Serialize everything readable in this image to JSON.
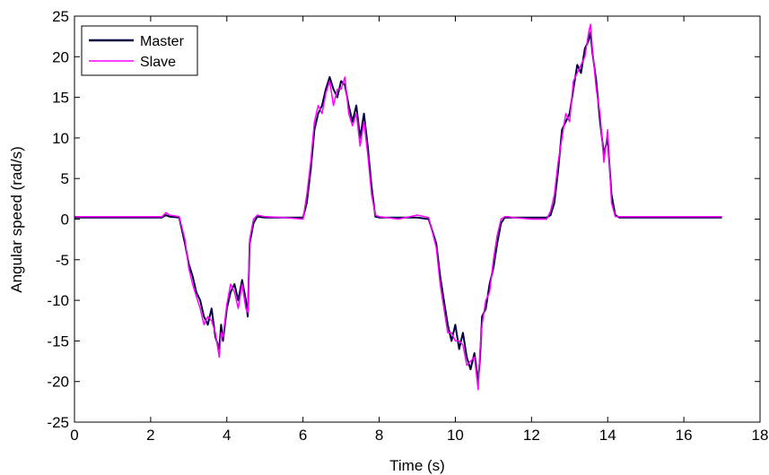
{
  "chart_data": {
    "type": "line",
    "xlabel": "Time (s)",
    "ylabel": "Angular speed (rad/s)",
    "xlim": [
      0,
      18
    ],
    "ylim": [
      -25,
      25
    ],
    "xticks": [
      0,
      2,
      4,
      6,
      8,
      10,
      12,
      14,
      16,
      18
    ],
    "yticks": [
      -25,
      -20,
      -15,
      -10,
      -5,
      0,
      5,
      10,
      15,
      20,
      25
    ],
    "grid": false,
    "legend_position": "top-left",
    "series": [
      {
        "name": "Master",
        "color": "#000040",
        "x": [
          0,
          2.3,
          2.4,
          2.5,
          2.75,
          2.9,
          3.0,
          3.1,
          3.2,
          3.3,
          3.4,
          3.5,
          3.6,
          3.7,
          3.8,
          3.85,
          3.9,
          4.0,
          4.1,
          4.2,
          4.3,
          4.4,
          4.5,
          4.55,
          4.6,
          4.7,
          4.8,
          5.0,
          5.5,
          6.0,
          6.1,
          6.2,
          6.3,
          6.4,
          6.5,
          6.6,
          6.7,
          6.8,
          6.9,
          7.0,
          7.1,
          7.2,
          7.3,
          7.4,
          7.5,
          7.6,
          7.7,
          7.8,
          7.9,
          8.0,
          8.5,
          9.0,
          9.3,
          9.5,
          9.6,
          9.7,
          9.8,
          9.9,
          10.0,
          10.1,
          10.2,
          10.3,
          10.4,
          10.5,
          10.6,
          10.65,
          10.7,
          10.8,
          10.9,
          11.0,
          11.1,
          11.2,
          11.3,
          11.4,
          11.5,
          12.0,
          12.4,
          12.5,
          12.6,
          12.7,
          12.8,
          12.9,
          13.0,
          13.1,
          13.2,
          13.3,
          13.4,
          13.5,
          13.55,
          13.6,
          13.7,
          13.8,
          13.9,
          14.0,
          14.1,
          14.2,
          14.3,
          14.5,
          15.0,
          16.0,
          17.0
        ],
        "values": [
          0.2,
          0.2,
          0.5,
          0.3,
          0.2,
          -3.0,
          -5.5,
          -7.0,
          -9.0,
          -10.0,
          -12.0,
          -13.0,
          -11.0,
          -14.5,
          -16.0,
          -13.0,
          -15.0,
          -11.0,
          -9.0,
          -8.0,
          -10.0,
          -7.5,
          -10.0,
          -12.0,
          -3.0,
          -0.5,
          0.3,
          0.2,
          0.2,
          0.2,
          2.0,
          6.0,
          11.0,
          13.0,
          14.0,
          16.0,
          17.5,
          16.0,
          15.0,
          17.0,
          16.5,
          14.0,
          12.0,
          14.0,
          10.0,
          13.0,
          9.0,
          4.0,
          0.3,
          0.2,
          0.2,
          0.2,
          0.0,
          -3.0,
          -7.0,
          -10.0,
          -13.0,
          -15.0,
          -13.0,
          -16.0,
          -14.0,
          -17.0,
          -18.5,
          -16.5,
          -20.0,
          -17.0,
          -12.0,
          -11.0,
          -8.0,
          -6.0,
          -3.0,
          -0.5,
          0.2,
          0.2,
          0.2,
          0.2,
          0.2,
          0.5,
          2.0,
          6.0,
          11.0,
          12.0,
          13.0,
          16.0,
          19.0,
          18.0,
          21.0,
          22.0,
          23.0,
          20.5,
          17.0,
          12.0,
          8.0,
          10.0,
          3.0,
          0.5,
          0.2,
          0.2,
          0.2,
          0.2,
          0.2
        ]
      },
      {
        "name": "Slave",
        "color": "#ff00ff",
        "x": [
          0,
          2.3,
          2.4,
          2.5,
          2.75,
          2.9,
          3.0,
          3.1,
          3.2,
          3.3,
          3.4,
          3.5,
          3.6,
          3.7,
          3.8,
          3.85,
          3.9,
          4.0,
          4.1,
          4.2,
          4.3,
          4.4,
          4.5,
          4.55,
          4.6,
          4.7,
          4.8,
          5.0,
          5.5,
          6.0,
          6.1,
          6.2,
          6.3,
          6.4,
          6.5,
          6.6,
          6.7,
          6.8,
          6.9,
          7.0,
          7.1,
          7.2,
          7.3,
          7.4,
          7.5,
          7.6,
          7.7,
          7.8,
          7.9,
          8.0,
          8.5,
          9.0,
          9.3,
          9.5,
          9.6,
          9.7,
          9.8,
          9.9,
          10.0,
          10.1,
          10.2,
          10.3,
          10.4,
          10.5,
          10.6,
          10.65,
          10.7,
          10.8,
          10.9,
          11.0,
          11.1,
          11.2,
          11.3,
          11.4,
          11.5,
          12.0,
          12.4,
          12.5,
          12.6,
          12.7,
          12.8,
          12.9,
          13.0,
          13.1,
          13.2,
          13.3,
          13.4,
          13.5,
          13.55,
          13.6,
          13.7,
          13.8,
          13.9,
          14.0,
          14.1,
          14.2,
          14.3,
          14.5,
          15.0,
          16.0,
          17.0
        ],
        "values": [
          0.3,
          0.3,
          0.8,
          0.5,
          0.3,
          -2.5,
          -6.0,
          -8.0,
          -9.5,
          -11.0,
          -13.0,
          -12.0,
          -12.5,
          -14.0,
          -17.0,
          -14.0,
          -14.5,
          -10.5,
          -8.0,
          -9.0,
          -11.0,
          -8.0,
          -11.0,
          -11.5,
          -2.5,
          0.0,
          0.5,
          0.3,
          0.2,
          0.0,
          3.0,
          7.0,
          12.0,
          14.0,
          13.0,
          15.5,
          17.0,
          14.0,
          16.0,
          16.0,
          17.5,
          13.0,
          11.5,
          13.0,
          9.0,
          12.0,
          8.0,
          3.0,
          0.5,
          0.3,
          0.0,
          0.5,
          0.2,
          -3.5,
          -8.0,
          -11.0,
          -14.0,
          -14.0,
          -15.0,
          -15.0,
          -15.5,
          -18.0,
          -17.5,
          -17.0,
          -21.0,
          -16.0,
          -13.0,
          -10.0,
          -9.0,
          -5.0,
          -2.0,
          0.0,
          0.3,
          0.3,
          0.2,
          0.0,
          0.0,
          1.0,
          3.0,
          7.0,
          10.0,
          13.0,
          12.0,
          17.0,
          18.0,
          19.0,
          20.0,
          23.0,
          24.0,
          21.0,
          16.0,
          13.0,
          7.0,
          11.0,
          2.0,
          0.3,
          0.3,
          0.3,
          0.3,
          0.3,
          0.3
        ]
      }
    ]
  }
}
